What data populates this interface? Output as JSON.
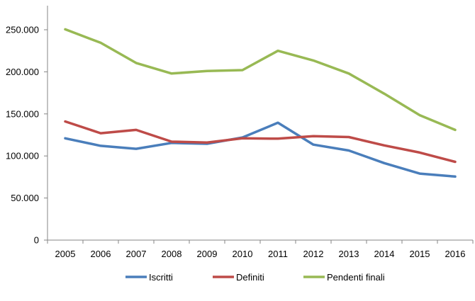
{
  "chart_data": {
    "type": "line",
    "categories": [
      "2005",
      "2006",
      "2007",
      "2008",
      "2009",
      "2010",
      "2011",
      "2012",
      "2013",
      "2014",
      "2015",
      "2016"
    ],
    "ylim": [
      0,
      250000
    ],
    "yticks": [
      0,
      50000,
      100000,
      150000,
      200000,
      250000
    ],
    "ytick_labels": [
      "0",
      "50.000",
      "100.000",
      "150.000",
      "200.000",
      "250.000"
    ],
    "grid": false,
    "legend_position": "bottom",
    "series": [
      {
        "name": "Iscritti",
        "color": "#4A7EBB",
        "values": [
          121000,
          112000,
          108500,
          115500,
          114500,
          122000,
          139500,
          113500,
          106500,
          91500,
          79000,
          75500
        ]
      },
      {
        "name": "Definiti",
        "color": "#BE4B48",
        "values": [
          141000,
          127000,
          131000,
          117000,
          116000,
          121000,
          120500,
          123500,
          122500,
          112500,
          104000,
          93000
        ]
      },
      {
        "name": "Pendenti finali",
        "color": "#98B954",
        "values": [
          250500,
          234500,
          210500,
          198000,
          201000,
          202000,
          225000,
          213500,
          198000,
          174000,
          148500,
          131000
        ]
      }
    ]
  }
}
